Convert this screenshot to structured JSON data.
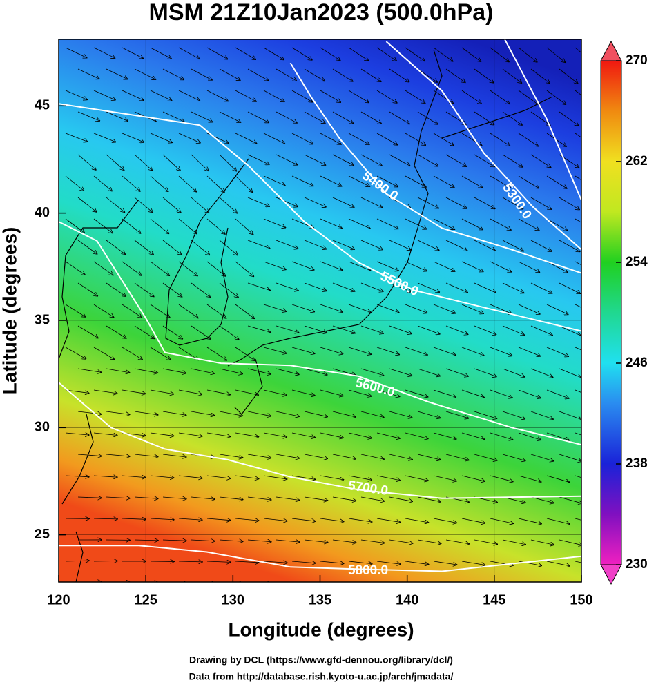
{
  "title": "MSM 21Z10Jan2023 (500.0hPa)",
  "map": {
    "xlabel": "Longitude (degrees)",
    "ylabel": "Latitude  (degrees)",
    "xlim": [
      120,
      150
    ],
    "ylim": [
      22.8,
      48.1
    ],
    "xticks": [
      120,
      125,
      130,
      135,
      140,
      145,
      150
    ],
    "yticks": [
      25,
      30,
      35,
      40,
      45
    ],
    "contours": [
      {
        "points": [
          [
            145.6,
            48.1
          ],
          [
            148.0,
            44.4
          ],
          [
            150.0,
            40.6
          ]
        ]
      },
      {
        "label": "5300.0",
        "points": [
          [
            138.8,
            48.0
          ],
          [
            142.0,
            45.7
          ],
          [
            144.4,
            42.8
          ],
          [
            147.2,
            40.3
          ],
          [
            150.0,
            38.3
          ]
        ]
      },
      {
        "label": "5400.0",
        "points": [
          [
            133.3,
            47.0
          ],
          [
            134.5,
            45.4
          ],
          [
            136.1,
            43.5
          ],
          [
            138.8,
            40.9
          ],
          [
            142.0,
            39.3
          ],
          [
            146.0,
            38.3
          ],
          [
            150.0,
            37.2
          ]
        ]
      },
      {
        "label": "5500.0",
        "points": [
          [
            120.0,
            45.1
          ],
          [
            128.1,
            44.1
          ],
          [
            130.9,
            42.2
          ],
          [
            134.1,
            39.6
          ],
          [
            137.2,
            37.7
          ],
          [
            140.4,
            36.4
          ],
          [
            144.4,
            35.6
          ],
          [
            150.0,
            34.5
          ]
        ]
      },
      {
        "label": "5600.0",
        "points": [
          [
            120.0,
            39.6
          ],
          [
            122.2,
            38.7
          ],
          [
            125.0,
            35.1
          ],
          [
            126.1,
            33.5
          ],
          [
            129.3,
            33.0
          ],
          [
            133.3,
            32.9
          ],
          [
            137.2,
            32.4
          ],
          [
            141.2,
            31.2
          ],
          [
            146.0,
            30.0
          ],
          [
            150.0,
            29.2
          ]
        ]
      },
      {
        "label": "5700.0",
        "points": [
          [
            120.0,
            32.1
          ],
          [
            123.0,
            30.0
          ],
          [
            126.1,
            29.0
          ],
          [
            129.7,
            28.5
          ],
          [
            133.3,
            27.7
          ],
          [
            137.2,
            27.1
          ],
          [
            142.0,
            26.7
          ],
          [
            150.0,
            26.8
          ]
        ]
      },
      {
        "label": "5800.0",
        "points": [
          [
            120.0,
            24.5
          ],
          [
            124.6,
            24.5
          ],
          [
            128.5,
            24.2
          ],
          [
            133.3,
            23.5
          ],
          [
            137.2,
            23.4
          ],
          [
            142.0,
            23.3
          ],
          [
            150.0,
            24.0
          ]
        ]
      }
    ]
  },
  "colorbar": {
    "lim": [
      230,
      270
    ],
    "ticks": [
      230,
      238,
      246,
      254,
      262,
      270
    ]
  },
  "footer": [
    "Drawing by DCL (https://www.gfd-dennou.org/library/dcl/)",
    "Data from http://database.rish.kyoto-u.ac.jp/arch/jmadata/"
  ]
}
